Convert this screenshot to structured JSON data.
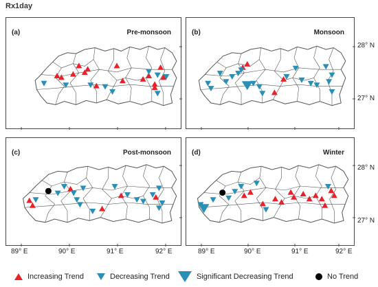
{
  "figure_title": "Rx1day",
  "panels": [
    {
      "id": "a",
      "letter": "(a)",
      "season": "Pre-monsoon"
    },
    {
      "id": "b",
      "letter": "(b)",
      "season": "Monsoon"
    },
    {
      "id": "c",
      "letter": "(c)",
      "season": "Post-monsoon"
    },
    {
      "id": "d",
      "letter": "(d)",
      "season": "Winter"
    }
  ],
  "latitude_labels": [
    "28° N",
    "27° N"
  ],
  "longitude_labels": [
    "89° E",
    "90° E",
    "91° E",
    "92° E"
  ],
  "legend": {
    "increasing": "Increasing Trend",
    "decreasing": "Decreasing Trend",
    "significant": "Significant Decreasing Trend",
    "no_trend": "No Trend"
  },
  "colors": {
    "increasing": "#e8212a",
    "decreasing": "#2a8fb6",
    "no_trend": "#000000",
    "boundary": "#555555"
  },
  "marker_glyphs": {
    "increasing": "triangle-up",
    "decreasing": "triangle-down",
    "significant": "large-triangle-down",
    "no_trend": "black-dot"
  }
}
